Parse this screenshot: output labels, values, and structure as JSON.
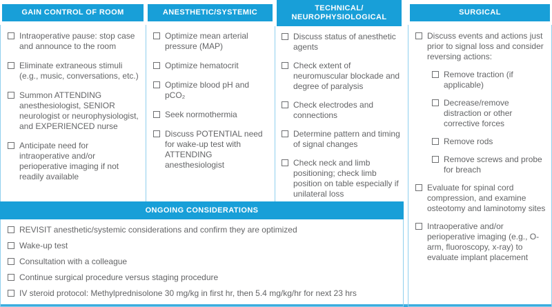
{
  "colors": {
    "accent": "#189fd8",
    "divider_line": "#8fcfee",
    "body_text": "#636466",
    "checkbox": "#6d6e70",
    "header_text": "#ffffff",
    "bottom_rule": "#3badde"
  },
  "columns": [
    {
      "title": "GAIN CONTROL OF ROOM",
      "items": [
        {
          "text": "Intraoperative pause: stop case and announce to the room"
        },
        {
          "text": "Eliminate extraneous stimuli (e.g., music, conversations, etc.)"
        },
        {
          "text": "Summon ATTENDING anesthesiologist, SENIOR neurologist or neurophysiologist, and EXPERIENCED nurse"
        },
        {
          "text": "Anticipate need for intraoperative and/or perioperative imaging if not readily available"
        }
      ]
    },
    {
      "title": "ANESTHETIC/SYSTEMIC",
      "items": [
        {
          "text": "Optimize mean arterial pressure (MAP)"
        },
        {
          "text": "Optimize hematocrit"
        },
        {
          "text": "Optimize blood pH and pCO₂"
        },
        {
          "text": "Seek normothermia"
        },
        {
          "text": "Discuss POTENTIAL need for wake-up test with ATTENDING anesthesiologist"
        }
      ]
    },
    {
      "title": "TECHNICAL/ NEUROPHYSIOLOGICAL",
      "items": [
        {
          "text": "Discuss status of anesthetic agents"
        },
        {
          "text": "Check extent of neuromuscular blockade and degree of paralysis"
        },
        {
          "text": "Check electrodes and connections"
        },
        {
          "text": "Determine pattern and timing of signal changes"
        },
        {
          "text": "Check neck and limb positioning; check limb position on table especially if unilateral loss"
        }
      ]
    },
    {
      "title": "SURGICAL",
      "items": [
        {
          "text": "Discuss events and actions just prior to signal loss and consider reversing actions:",
          "level": 0
        },
        {
          "text": "Remove traction (if applicable)",
          "level": 1
        },
        {
          "text": "Decrease/remove distraction or other corrective forces",
          "level": 1
        },
        {
          "text": "Remove rods",
          "level": 1
        },
        {
          "text": "Remove screws and probe for breach",
          "level": 1
        },
        {
          "text": "Evaluate for spinal cord compression, and examine osteotomy and laminotomy sites",
          "level": 0
        },
        {
          "text": "Intraoperative and/or perioperative imaging (e.g., O-arm, fluoroscopy, x-ray) to evaluate implant placement",
          "level": 0
        }
      ]
    }
  ],
  "ongoing": {
    "title": "ONGOING CONSIDERATIONS",
    "items": [
      {
        "text": "REVISIT anesthetic/systemic considerations and confirm they are optimized"
      },
      {
        "text": "Wake-up test"
      },
      {
        "text": "Consultation with a colleague"
      },
      {
        "text": "Continue surgical procedure versus staging procedure"
      },
      {
        "text": "IV steroid protocol: Methylprednisolone 30 mg/kg in first hr, then 5.4 mg/kg/hr for next 23 hrs"
      }
    ]
  }
}
